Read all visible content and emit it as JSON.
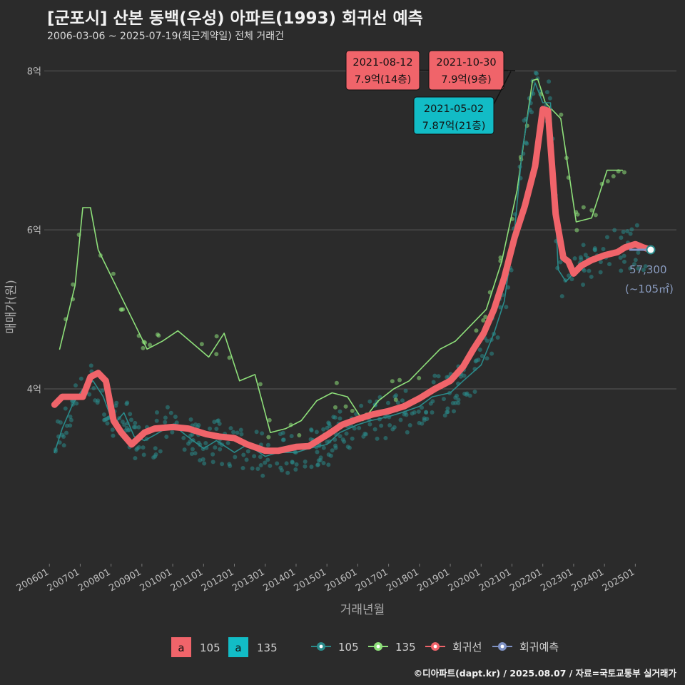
{
  "header": {
    "title": "[군포시] 산본 동백(우성) 아파트(1993) 회귀선 예측",
    "subtitle": "2006-03-06 ~ 2025-07-19(최근계약일) 전체 거래건"
  },
  "footer": {
    "credit": "©디아파트(dapt.kr) / 2025.08.07 / 자료=국토교통부 실거래가"
  },
  "chart_data": {
    "type": "line",
    "xlabel": "거래년월",
    "ylabel": "매매가(원)",
    "x_range": [
      "2005-11",
      "2026-05"
    ],
    "ylim": [
      1.8,
      8.3
    ],
    "y_ticks": [
      {
        "value": 4,
        "label": "4억"
      },
      {
        "value": 6,
        "label": "6억"
      },
      {
        "value": 8,
        "label": "8억"
      }
    ],
    "x_ticks": [
      "200601",
      "200701",
      "200801",
      "200901",
      "201001",
      "201101",
      "201201",
      "201301",
      "201401",
      "201501",
      "201601",
      "201701",
      "201801",
      "201901",
      "202001",
      "202101",
      "202201",
      "202301",
      "202401",
      "202501"
    ],
    "grid": true,
    "colors": {
      "s105": "#2a8a8a",
      "s135": "#8ee07a",
      "regression": "#f0646a",
      "forecast": "#7f92c4",
      "cyan": "#12bcc6",
      "bg": "#2b2b2b"
    },
    "series": [
      {
        "name": "회귀선",
        "x": [
          "2006-03",
          "2006-06",
          "2006-10",
          "2007-02",
          "2007-05",
          "2007-08",
          "2007-11",
          "2008-02",
          "2008-05",
          "2008-09",
          "2009-02",
          "2009-06",
          "2010-01",
          "2010-07",
          "2011-02",
          "2011-07",
          "2012-01",
          "2012-06",
          "2013-01",
          "2013-06",
          "2014-01",
          "2014-06",
          "2015-01",
          "2015-07",
          "2016-01",
          "2016-07",
          "2017-01",
          "2017-07",
          "2018-01",
          "2018-07",
          "2019-01",
          "2019-06",
          "2019-10",
          "2020-02",
          "2020-06",
          "2020-10",
          "2021-02",
          "2021-06",
          "2021-10",
          "2022-01",
          "2022-03",
          "2022-06",
          "2022-09",
          "2022-11",
          "2023-01",
          "2023-04",
          "2023-08",
          "2024-01",
          "2024-06",
          "2024-09",
          "2025-01",
          "2025-04",
          "2025-07"
        ],
        "values": [
          3.8,
          3.9,
          3.9,
          3.9,
          4.15,
          4.2,
          4.1,
          3.6,
          3.45,
          3.3,
          3.45,
          3.5,
          3.52,
          3.5,
          3.43,
          3.4,
          3.38,
          3.3,
          3.22,
          3.22,
          3.27,
          3.28,
          3.42,
          3.55,
          3.62,
          3.68,
          3.72,
          3.78,
          3.88,
          4.0,
          4.1,
          4.28,
          4.5,
          4.7,
          5.0,
          5.4,
          5.9,
          6.3,
          6.8,
          7.52,
          7.5,
          6.2,
          5.65,
          5.6,
          5.45,
          5.55,
          5.62,
          5.68,
          5.72,
          5.78,
          5.82,
          5.78,
          5.75
        ]
      },
      {
        "name": "105",
        "x": [
          "2006-03",
          "2006-06",
          "2006-10",
          "2007-02",
          "2007-06",
          "2007-10",
          "2008-02",
          "2008-06",
          "2008-10",
          "2009-02",
          "2009-06",
          "2010-01",
          "2010-06",
          "2011-01",
          "2011-06",
          "2012-01",
          "2012-06",
          "2013-01",
          "2013-06",
          "2014-01",
          "2014-06",
          "2015-01",
          "2015-06",
          "2016-01",
          "2016-06",
          "2017-01",
          "2017-06",
          "2018-01",
          "2018-06",
          "2019-01",
          "2019-06",
          "2020-01",
          "2020-06",
          "2020-10",
          "2021-02",
          "2021-05",
          "2021-08",
          "2021-10",
          "2022-01",
          "2022-04",
          "2022-07",
          "2022-10",
          "2023-01",
          "2023-06",
          "2024-01",
          "2024-06",
          "2025-01",
          "2025-07"
        ],
        "values": [
          3.2,
          3.5,
          3.8,
          4.0,
          4.1,
          3.9,
          3.55,
          3.7,
          3.4,
          3.35,
          3.42,
          3.55,
          3.42,
          3.25,
          3.35,
          3.2,
          3.3,
          3.15,
          3.2,
          3.2,
          3.25,
          3.3,
          3.45,
          3.55,
          3.6,
          3.65,
          3.7,
          3.78,
          3.9,
          3.95,
          4.1,
          4.3,
          4.7,
          5.1,
          6.0,
          7.0,
          7.6,
          7.85,
          7.6,
          7.6,
          5.5,
          5.35,
          5.45,
          5.6,
          5.7,
          5.75,
          5.8,
          5.73
        ]
      },
      {
        "name": "135",
        "x": [
          "2006-05",
          "2006-08",
          "2006-11",
          "2007-02",
          "2007-05",
          "2007-08",
          "2009-03",
          "2009-09",
          "2010-03",
          "2011-03",
          "2011-09",
          "2012-03",
          "2012-09",
          "2013-03",
          "2013-09",
          "2014-03",
          "2014-09",
          "2015-03",
          "2015-09",
          "2016-03",
          "2016-09",
          "2017-03",
          "2017-09",
          "2018-03",
          "2018-09",
          "2019-03",
          "2019-09",
          "2020-03",
          "2020-09",
          "2021-03",
          "2021-06",
          "2021-09",
          "2021-11",
          "2022-02",
          "2022-08",
          "2023-02",
          "2023-08",
          "2024-02",
          "2024-08"
        ],
        "values": [
          4.5,
          4.9,
          5.3,
          6.28,
          6.28,
          5.75,
          4.5,
          4.6,
          4.73,
          4.4,
          4.7,
          4.1,
          4.18,
          3.45,
          3.5,
          3.6,
          3.85,
          3.95,
          3.9,
          3.6,
          3.85,
          4.0,
          4.1,
          4.3,
          4.5,
          4.6,
          4.8,
          5.0,
          5.6,
          6.5,
          7.2,
          7.88,
          7.9,
          7.6,
          7.4,
          6.1,
          6.15,
          6.75,
          6.75
        ]
      }
    ],
    "annotations": [
      {
        "date": "2021-08-12",
        "price": "7.9억(14층)",
        "color": "#f0646a"
      },
      {
        "date": "2021-10-30",
        "price": "7.9억(9층)",
        "color": "#f0646a"
      },
      {
        "date": "2021-05-02",
        "price": "7.87억(21층)",
        "color": "#12bcc6"
      }
    ],
    "end_label": {
      "value": "57,300",
      "area": "(~105㎡)"
    },
    "legend": {
      "fill": [
        {
          "key": "a",
          "label": "105",
          "color": "#f0646a"
        },
        {
          "key": "a",
          "label": "135",
          "color": "#12bcc6"
        }
      ],
      "lines": [
        {
          "label": "105",
          "color": "#2a8a8a"
        },
        {
          "label": "135",
          "color": "#8ee07a"
        },
        {
          "label": "회귀선",
          "color": "#f0646a"
        },
        {
          "label": "회귀예측",
          "color": "#7f92c4"
        }
      ]
    }
  }
}
